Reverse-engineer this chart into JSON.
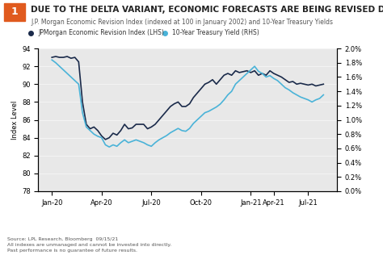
{
  "title": "DUE TO THE DELTA VARIANT, ECONOMIC FORECASTS ARE BEING REVISED DOWN",
  "subtitle": "J.P. Morgan Economic Revision Index (indexed at 100 in January 2002) and 10-Year Treasury Yields",
  "legend": [
    "JPMorgan Economic Revision Index (LHS)",
    "10-Year Treasury Yield (RHS)"
  ],
  "ylabel_left": "Index Level",
  "ylim_left": [
    78,
    94
  ],
  "yticks_left": [
    78,
    80,
    82,
    84,
    86,
    88,
    90,
    92,
    94
  ],
  "ylim_right": [
    0.0,
    2.0
  ],
  "yticks_right": [
    0.0,
    0.2,
    0.4,
    0.6,
    0.8,
    1.0,
    1.2,
    1.4,
    1.6,
    1.8,
    2.0
  ],
  "xtick_labels": [
    "Jan-20",
    "Apr-20",
    "Jul-20",
    "Oct-20",
    "Jan-21",
    "Apr-21",
    "Jul-21"
  ],
  "source_text": "Source: LPL Research, Bloomberg  09/15/21\nAll indexes are unmanaged and cannot be invested into directly.\nPast performance is no guarantee of future results.",
  "bg_color": "#e8e8e8",
  "line1_color": "#1a2a4a",
  "line2_color": "#4ab3d8",
  "title_box_color": "#e05a1e",
  "jpmorgan_index": [
    93.0,
    93.1,
    93.0,
    93.0,
    93.1,
    92.9,
    93.0,
    92.5,
    88.0,
    85.5,
    85.0,
    85.2,
    84.8,
    84.2,
    83.8,
    84.0,
    84.5,
    84.3,
    84.8,
    85.5,
    85.0,
    85.1,
    85.5,
    85.5,
    85.5,
    85.0,
    85.2,
    85.5,
    86.0,
    86.5,
    87.0,
    87.5,
    87.8,
    88.0,
    87.5,
    87.5,
    87.8,
    88.5,
    89.0,
    89.5,
    90.0,
    90.2,
    90.5,
    90.0,
    90.5,
    91.0,
    91.2,
    91.0,
    91.5,
    91.3,
    91.4,
    91.5,
    91.3,
    91.5,
    91.0,
    91.2,
    91.0,
    91.5,
    91.2,
    91.0,
    90.8,
    90.5,
    90.2,
    90.3,
    90.0,
    90.1,
    90.0,
    89.9,
    90.0,
    89.8,
    89.9,
    90.0
  ],
  "treasury_yield": [
    1.84,
    1.8,
    1.75,
    1.7,
    1.65,
    1.6,
    1.55,
    1.5,
    1.1,
    0.9,
    0.85,
    0.8,
    0.77,
    0.75,
    0.65,
    0.62,
    0.65,
    0.63,
    0.68,
    0.72,
    0.68,
    0.7,
    0.72,
    0.7,
    0.68,
    0.65,
    0.63,
    0.68,
    0.72,
    0.75,
    0.78,
    0.82,
    0.85,
    0.88,
    0.85,
    0.84,
    0.88,
    0.95,
    1.0,
    1.05,
    1.1,
    1.12,
    1.15,
    1.18,
    1.22,
    1.28,
    1.35,
    1.4,
    1.5,
    1.55,
    1.6,
    1.65,
    1.7,
    1.75,
    1.68,
    1.65,
    1.6,
    1.62,
    1.58,
    1.55,
    1.5,
    1.45,
    1.42,
    1.38,
    1.35,
    1.32,
    1.3,
    1.28,
    1.25,
    1.28,
    1.3,
    1.35
  ]
}
